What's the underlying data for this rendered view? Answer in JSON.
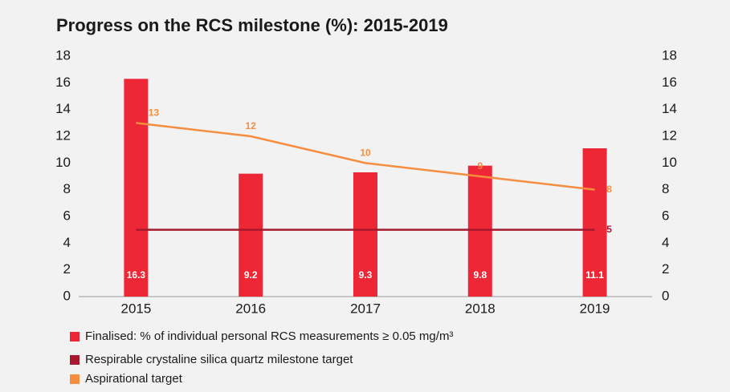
{
  "chart_data": {
    "type": "bar",
    "title": "Progress on the RCS milestone (%): 2015-2019",
    "categories": [
      "2015",
      "2016",
      "2017",
      "2018",
      "2019"
    ],
    "series": [
      {
        "name": "Finalised: % of individual personal RCS measurements ≥ 0.05 mg/m³",
        "type": "bar",
        "color": "#ee2737",
        "values": [
          16.3,
          9.2,
          9.3,
          9.8,
          11.1
        ]
      },
      {
        "name": "Respirable crystaline silica quartz milestone target",
        "type": "line",
        "color": "#a6192e",
        "values": [
          5,
          5,
          5,
          5,
          5
        ],
        "labeled": [
          false,
          false,
          false,
          false,
          true
        ]
      },
      {
        "name": "Aspirational target",
        "type": "line",
        "color": "#f68d3f",
        "values": [
          13,
          12,
          10,
          9,
          8
        ]
      }
    ],
    "ylim": [
      0,
      18
    ],
    "yticks": [
      0,
      2,
      4,
      6,
      8,
      10,
      12,
      14,
      16,
      18
    ],
    "y2lim": [
      0,
      18
    ],
    "y2ticks": [
      0,
      2,
      4,
      6,
      8,
      10,
      12,
      14,
      16,
      18
    ],
    "grid": false,
    "legend": "bottom-left"
  }
}
